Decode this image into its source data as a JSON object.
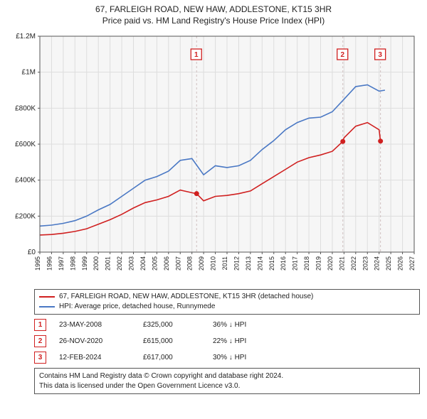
{
  "title_line1": "67, FARLEIGH ROAD, NEW HAW, ADDLESTONE, KT15 3HR",
  "title_line2": "Price paid vs. HM Land Registry's House Price Index (HPI)",
  "chart": {
    "type": "line",
    "bg_color": "#ffffff",
    "plot_bg_color": "#f6f6f6",
    "grid_color": "#dddddd",
    "axis_color": "#555555",
    "font_color": "#222222",
    "x_years": [
      1995,
      1996,
      1997,
      1998,
      1999,
      2000,
      2001,
      2002,
      2003,
      2004,
      2005,
      2006,
      2007,
      2008,
      2009,
      2010,
      2011,
      2012,
      2013,
      2014,
      2015,
      2016,
      2017,
      2018,
      2019,
      2020,
      2021,
      2022,
      2023,
      2024,
      2025,
      2026,
      2027
    ],
    "xlim": [
      1995,
      2027
    ],
    "ylim": [
      0,
      1200000
    ],
    "ytick_step": 200000,
    "ytick_labels": [
      "£0",
      "£200K",
      "£400K",
      "£600K",
      "£800K",
      "£1M",
      "£1.2M"
    ],
    "x_tick_fontsize": 9,
    "y_tick_fontsize": 10,
    "line_width": 1.6,
    "series": [
      {
        "name": "property",
        "color": "#d02020",
        "points": [
          [
            1995,
            95000
          ],
          [
            1996,
            98000
          ],
          [
            1997,
            105000
          ],
          [
            1998,
            115000
          ],
          [
            1999,
            130000
          ],
          [
            2000,
            155000
          ],
          [
            2001,
            180000
          ],
          [
            2002,
            210000
          ],
          [
            2003,
            245000
          ],
          [
            2004,
            275000
          ],
          [
            2005,
            290000
          ],
          [
            2006,
            310000
          ],
          [
            2007,
            345000
          ],
          [
            2008,
            330000
          ],
          [
            2008.4,
            325000
          ],
          [
            2009,
            285000
          ],
          [
            2010,
            310000
          ],
          [
            2011,
            315000
          ],
          [
            2012,
            325000
          ],
          [
            2013,
            340000
          ],
          [
            2014,
            380000
          ],
          [
            2015,
            420000
          ],
          [
            2016,
            460000
          ],
          [
            2017,
            500000
          ],
          [
            2018,
            525000
          ],
          [
            2019,
            540000
          ],
          [
            2020,
            560000
          ],
          [
            2020.9,
            615000
          ],
          [
            2021,
            635000
          ],
          [
            2022,
            700000
          ],
          [
            2023,
            720000
          ],
          [
            2024,
            680000
          ],
          [
            2024.12,
            617000
          ]
        ]
      },
      {
        "name": "hpi",
        "color": "#4a78c4",
        "points": [
          [
            1995,
            145000
          ],
          [
            1996,
            150000
          ],
          [
            1997,
            160000
          ],
          [
            1998,
            175000
          ],
          [
            1999,
            200000
          ],
          [
            2000,
            235000
          ],
          [
            2001,
            265000
          ],
          [
            2002,
            310000
          ],
          [
            2003,
            355000
          ],
          [
            2004,
            400000
          ],
          [
            2005,
            420000
          ],
          [
            2006,
            450000
          ],
          [
            2007,
            510000
          ],
          [
            2008,
            520000
          ],
          [
            2009,
            430000
          ],
          [
            2010,
            480000
          ],
          [
            2011,
            470000
          ],
          [
            2012,
            480000
          ],
          [
            2013,
            510000
          ],
          [
            2014,
            570000
          ],
          [
            2015,
            620000
          ],
          [
            2016,
            680000
          ],
          [
            2017,
            720000
          ],
          [
            2018,
            745000
          ],
          [
            2019,
            750000
          ],
          [
            2020,
            780000
          ],
          [
            2021,
            850000
          ],
          [
            2022,
            920000
          ],
          [
            2023,
            930000
          ],
          [
            2024,
            895000
          ],
          [
            2024.5,
            900000
          ]
        ]
      }
    ],
    "event_markers": [
      {
        "n": "1",
        "year": 2008.4,
        "price": 325000,
        "dot_color": "#d02020"
      },
      {
        "n": "2",
        "year": 2020.9,
        "price": 615000,
        "dot_color": "#d02020"
      },
      {
        "n": "3",
        "year": 2024.12,
        "price": 617000,
        "dot_color": "#d02020"
      }
    ],
    "badge_border_color": "#d02020",
    "badge_text_color": "#d02020",
    "vline_color": "#d0c0c0",
    "vline_dash": "3,3"
  },
  "legend": {
    "series1_color": "#d02020",
    "series1_label": "67, FARLEIGH ROAD, NEW HAW, ADDLESTONE, KT15 3HR (detached house)",
    "series2_color": "#4a78c4",
    "series2_label": "HPI: Average price, detached house, Runnymede"
  },
  "events": [
    {
      "n": "1",
      "date": "23-MAY-2008",
      "price": "£325,000",
      "delta": "36% ↓ HPI"
    },
    {
      "n": "2",
      "date": "26-NOV-2020",
      "price": "£615,000",
      "delta": "22% ↓ HPI"
    },
    {
      "n": "3",
      "date": "12-FEB-2024",
      "price": "£617,000",
      "delta": "30% ↓ HPI"
    }
  ],
  "footnote_line1": "Contains HM Land Registry data © Crown copyright and database right 2024.",
  "footnote_line2": "This data is licensed under the Open Government Licence v3.0."
}
